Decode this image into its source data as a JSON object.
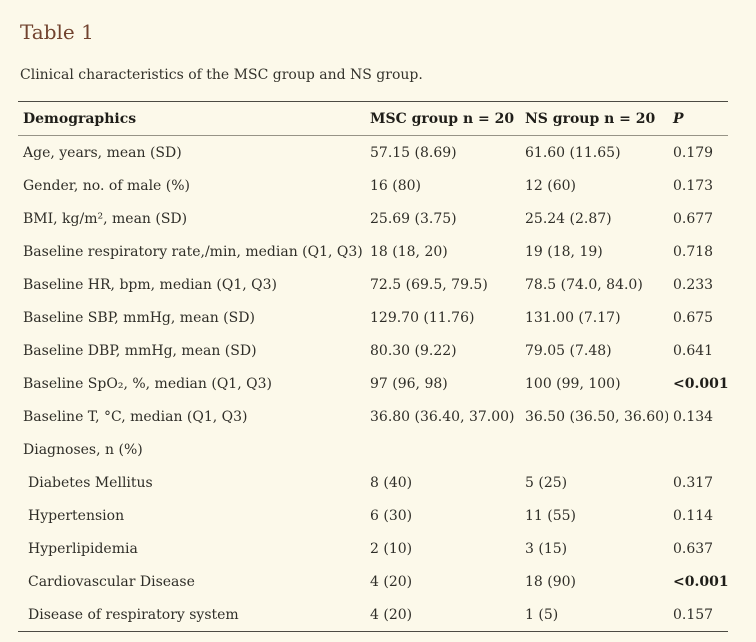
{
  "page": {
    "title": "Table 1",
    "caption": "Clinical characteristics of the MSC group and NS group."
  },
  "colors": {
    "background": "#fcf9ea",
    "title_text": "#71432f",
    "body_text": "#2f2e28",
    "border_dark": "#4c4b43",
    "border_light": "#979487"
  },
  "table": {
    "columns": [
      {
        "label": "Demographics"
      },
      {
        "label": "MSC group n = 20"
      },
      {
        "label": "NS group n = 20"
      },
      {
        "label": "P"
      }
    ],
    "rows": [
      {
        "label": "Age, years, mean (SD)",
        "msc": "57.15 (8.69)",
        "ns": "61.60 (11.65)",
        "p": "0.179"
      },
      {
        "label": "Gender, no. of male (%)",
        "msc": "16 (80)",
        "ns": "12 (60)",
        "p": "0.173"
      },
      {
        "label": "BMI, kg/m², mean (SD)",
        "msc": "25.69 (3.75)",
        "ns": "25.24 (2.87)",
        "p": "0.677"
      },
      {
        "label": "Baseline respiratory rate,/min, median (Q1, Q3)",
        "msc": "18 (18, 20)",
        "ns": "19 (18, 19)",
        "p": "0.718"
      },
      {
        "label": "Baseline HR, bpm, median (Q1, Q3)",
        "msc": "72.5 (69.5, 79.5)",
        "ns": "78.5 (74.0, 84.0)",
        "p": "0.233"
      },
      {
        "label": "Baseline SBP, mmHg, mean (SD)",
        "msc": "129.70 (11.76)",
        "ns": "131.00 (7.17)",
        "p": "0.675"
      },
      {
        "label": "Baseline DBP, mmHg, mean (SD)",
        "msc": "80.30 (9.22)",
        "ns": "79.05 (7.48)",
        "p": "0.641"
      },
      {
        "label": "Baseline SpO₂, %, median (Q1, Q3)",
        "msc": "97 (96, 98)",
        "ns": "100 (99, 100)",
        "p": "<0.001",
        "p_bold": true
      },
      {
        "label": "Baseline T, °C, median (Q1, Q3)",
        "msc": "36.80 (36.40, 37.00)",
        "ns": "36.50 (36.50, 36.60)",
        "p": "0.134"
      },
      {
        "label": "Diagnoses, n (%)",
        "msc": "",
        "ns": "",
        "p": "",
        "section": true
      },
      {
        "label": "Diabetes Mellitus",
        "msc": "8 (40)",
        "ns": "5 (25)",
        "p": "0.317",
        "indent": true
      },
      {
        "label": "Hypertension",
        "msc": "6 (30)",
        "ns": "11 (55)",
        "p": "0.114",
        "indent": true
      },
      {
        "label": "Hyperlipidemia",
        "msc": "2 (10)",
        "ns": "3 (15)",
        "p": "0.637",
        "indent": true
      },
      {
        "label": "Cardiovascular Disease",
        "msc": "4 (20)",
        "ns": "18 (90)",
        "p": "<0.001",
        "p_bold": true,
        "indent": true
      },
      {
        "label": "Disease of respiratory system",
        "msc": "4 (20)",
        "ns": "1 (5)",
        "p": "0.157",
        "indent": true
      }
    ]
  }
}
